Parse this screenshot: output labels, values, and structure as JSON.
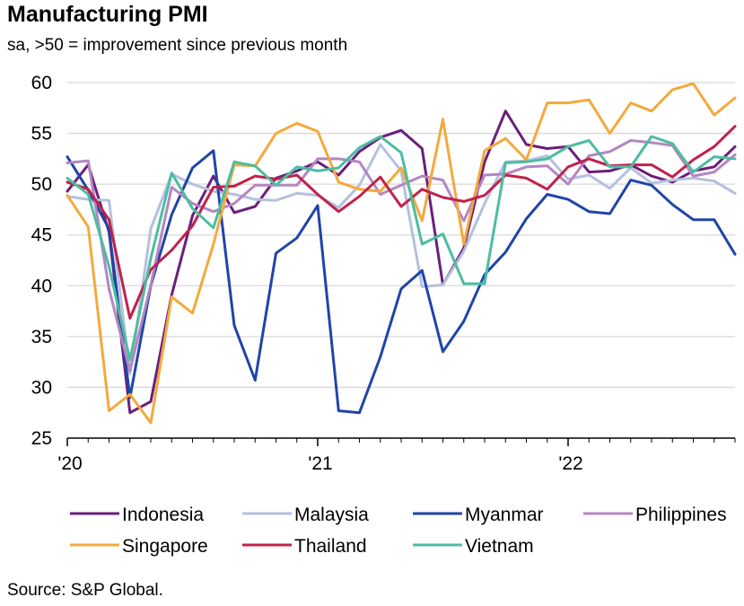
{
  "chart_data": {
    "type": "line",
    "title": "Manufacturing PMI",
    "subtitle": "sa, >50 = improvement since previous month",
    "source": "Source: S&P Global.",
    "xlabel": "",
    "ylabel": "",
    "ylim": [
      25,
      60
    ],
    "yticks": [
      25,
      30,
      35,
      40,
      45,
      50,
      55,
      60
    ],
    "x_tick_labels": [
      {
        "label": "'20",
        "index": 0
      },
      {
        "label": "'21",
        "index": 12
      },
      {
        "label": "'22",
        "index": 24
      }
    ],
    "x": [
      "2020-01",
      "2020-02",
      "2020-03",
      "2020-04",
      "2020-05",
      "2020-06",
      "2020-07",
      "2020-08",
      "2020-09",
      "2020-10",
      "2020-11",
      "2020-12",
      "2021-01",
      "2021-02",
      "2021-03",
      "2021-04",
      "2021-05",
      "2021-06",
      "2021-07",
      "2021-08",
      "2021-09",
      "2021-10",
      "2021-11",
      "2021-12",
      "2022-01",
      "2022-02",
      "2022-03",
      "2022-04",
      "2022-05",
      "2022-06",
      "2022-07",
      "2022-08",
      "2022-09"
    ],
    "series": [
      {
        "name": "Indonesia",
        "color": "#6a1f7c",
        "values": [
          49.3,
          51.9,
          45.3,
          27.5,
          28.6,
          39.1,
          46.9,
          50.8,
          47.2,
          47.8,
          50.6,
          51.3,
          52.2,
          50.9,
          53.2,
          54.6,
          55.3,
          53.5,
          40.1,
          43.7,
          52.2,
          57.2,
          53.9,
          53.5,
          53.7,
          51.2,
          51.3,
          51.9,
          50.8,
          50.2,
          51.3,
          51.7,
          53.7
        ]
      },
      {
        "name": "Malaysia",
        "color": "#b4c0de",
        "values": [
          48.8,
          48.5,
          48.4,
          31.3,
          45.6,
          51.0,
          50.0,
          49.3,
          49.0,
          48.5,
          48.4,
          49.1,
          48.9,
          47.7,
          49.9,
          53.9,
          51.3,
          39.9,
          40.1,
          43.4,
          48.1,
          52.2,
          52.3,
          52.8,
          50.5,
          50.9,
          49.6,
          51.6,
          50.1,
          50.4,
          50.6,
          50.3,
          49.1
        ]
      },
      {
        "name": "Myanmar",
        "color": "#1f45a8",
        "values": [
          52.7,
          49.4,
          45.6,
          29.0,
          40.0,
          47.0,
          51.6,
          53.3,
          36.1,
          30.7,
          43.2,
          44.7,
          47.9,
          27.7,
          27.5,
          33.0,
          39.7,
          41.5,
          33.5,
          36.5,
          41.1,
          43.3,
          46.6,
          49.0,
          48.5,
          47.3,
          47.1,
          50.4,
          49.9,
          48.0,
          46.5,
          46.5,
          43.1
        ]
      },
      {
        "name": "Philippines",
        "color": "#b586c2",
        "values": [
          52.1,
          52.3,
          39.7,
          31.6,
          40.1,
          49.7,
          48.1,
          47.3,
          48.1,
          49.9,
          49.9,
          49.9,
          52.5,
          52.5,
          52.2,
          49.0,
          49.9,
          50.8,
          50.4,
          46.4,
          50.9,
          51.0,
          51.7,
          51.8,
          50.0,
          52.8,
          53.2,
          54.3,
          54.1,
          53.8,
          50.8,
          51.2,
          52.9
        ]
      },
      {
        "name": "Singapore",
        "color": "#f4a93d",
        "values": [
          48.9,
          45.8,
          27.7,
          29.3,
          26.5,
          38.9,
          37.3,
          44.1,
          51.9,
          51.8,
          55.0,
          56.0,
          55.2,
          50.2,
          49.5,
          49.3,
          51.6,
          46.4,
          56.4,
          44.1,
          53.3,
          54.5,
          52.4,
          58.0,
          58.0,
          58.3,
          55.0,
          58.0,
          57.2,
          59.3,
          59.9,
          56.8,
          58.5
        ]
      },
      {
        "name": "Thailand",
        "color": "#c0224a",
        "values": [
          50.2,
          49.5,
          46.5,
          36.8,
          41.6,
          43.5,
          45.9,
          49.7,
          49.8,
          50.8,
          50.5,
          50.9,
          49.0,
          47.3,
          48.8,
          50.7,
          47.8,
          49.5,
          48.7,
          48.3,
          48.9,
          50.9,
          50.6,
          49.5,
          51.7,
          52.5,
          51.8,
          51.9,
          51.9,
          50.7,
          52.4,
          53.7,
          55.7
        ]
      },
      {
        "name": "Vietnam",
        "color": "#4dbda0",
        "values": [
          50.6,
          49.0,
          41.9,
          32.7,
          42.7,
          51.1,
          47.6,
          45.7,
          52.2,
          51.8,
          49.9,
          51.7,
          51.3,
          51.6,
          53.6,
          54.7,
          53.1,
          44.1,
          45.1,
          40.2,
          40.2,
          52.1,
          52.2,
          52.5,
          53.7,
          54.3,
          51.7,
          51.7,
          54.7,
          54.0,
          51.2,
          52.7,
          52.5
        ]
      }
    ],
    "legend": {
      "placement": "bottom",
      "columns": 4
    }
  }
}
